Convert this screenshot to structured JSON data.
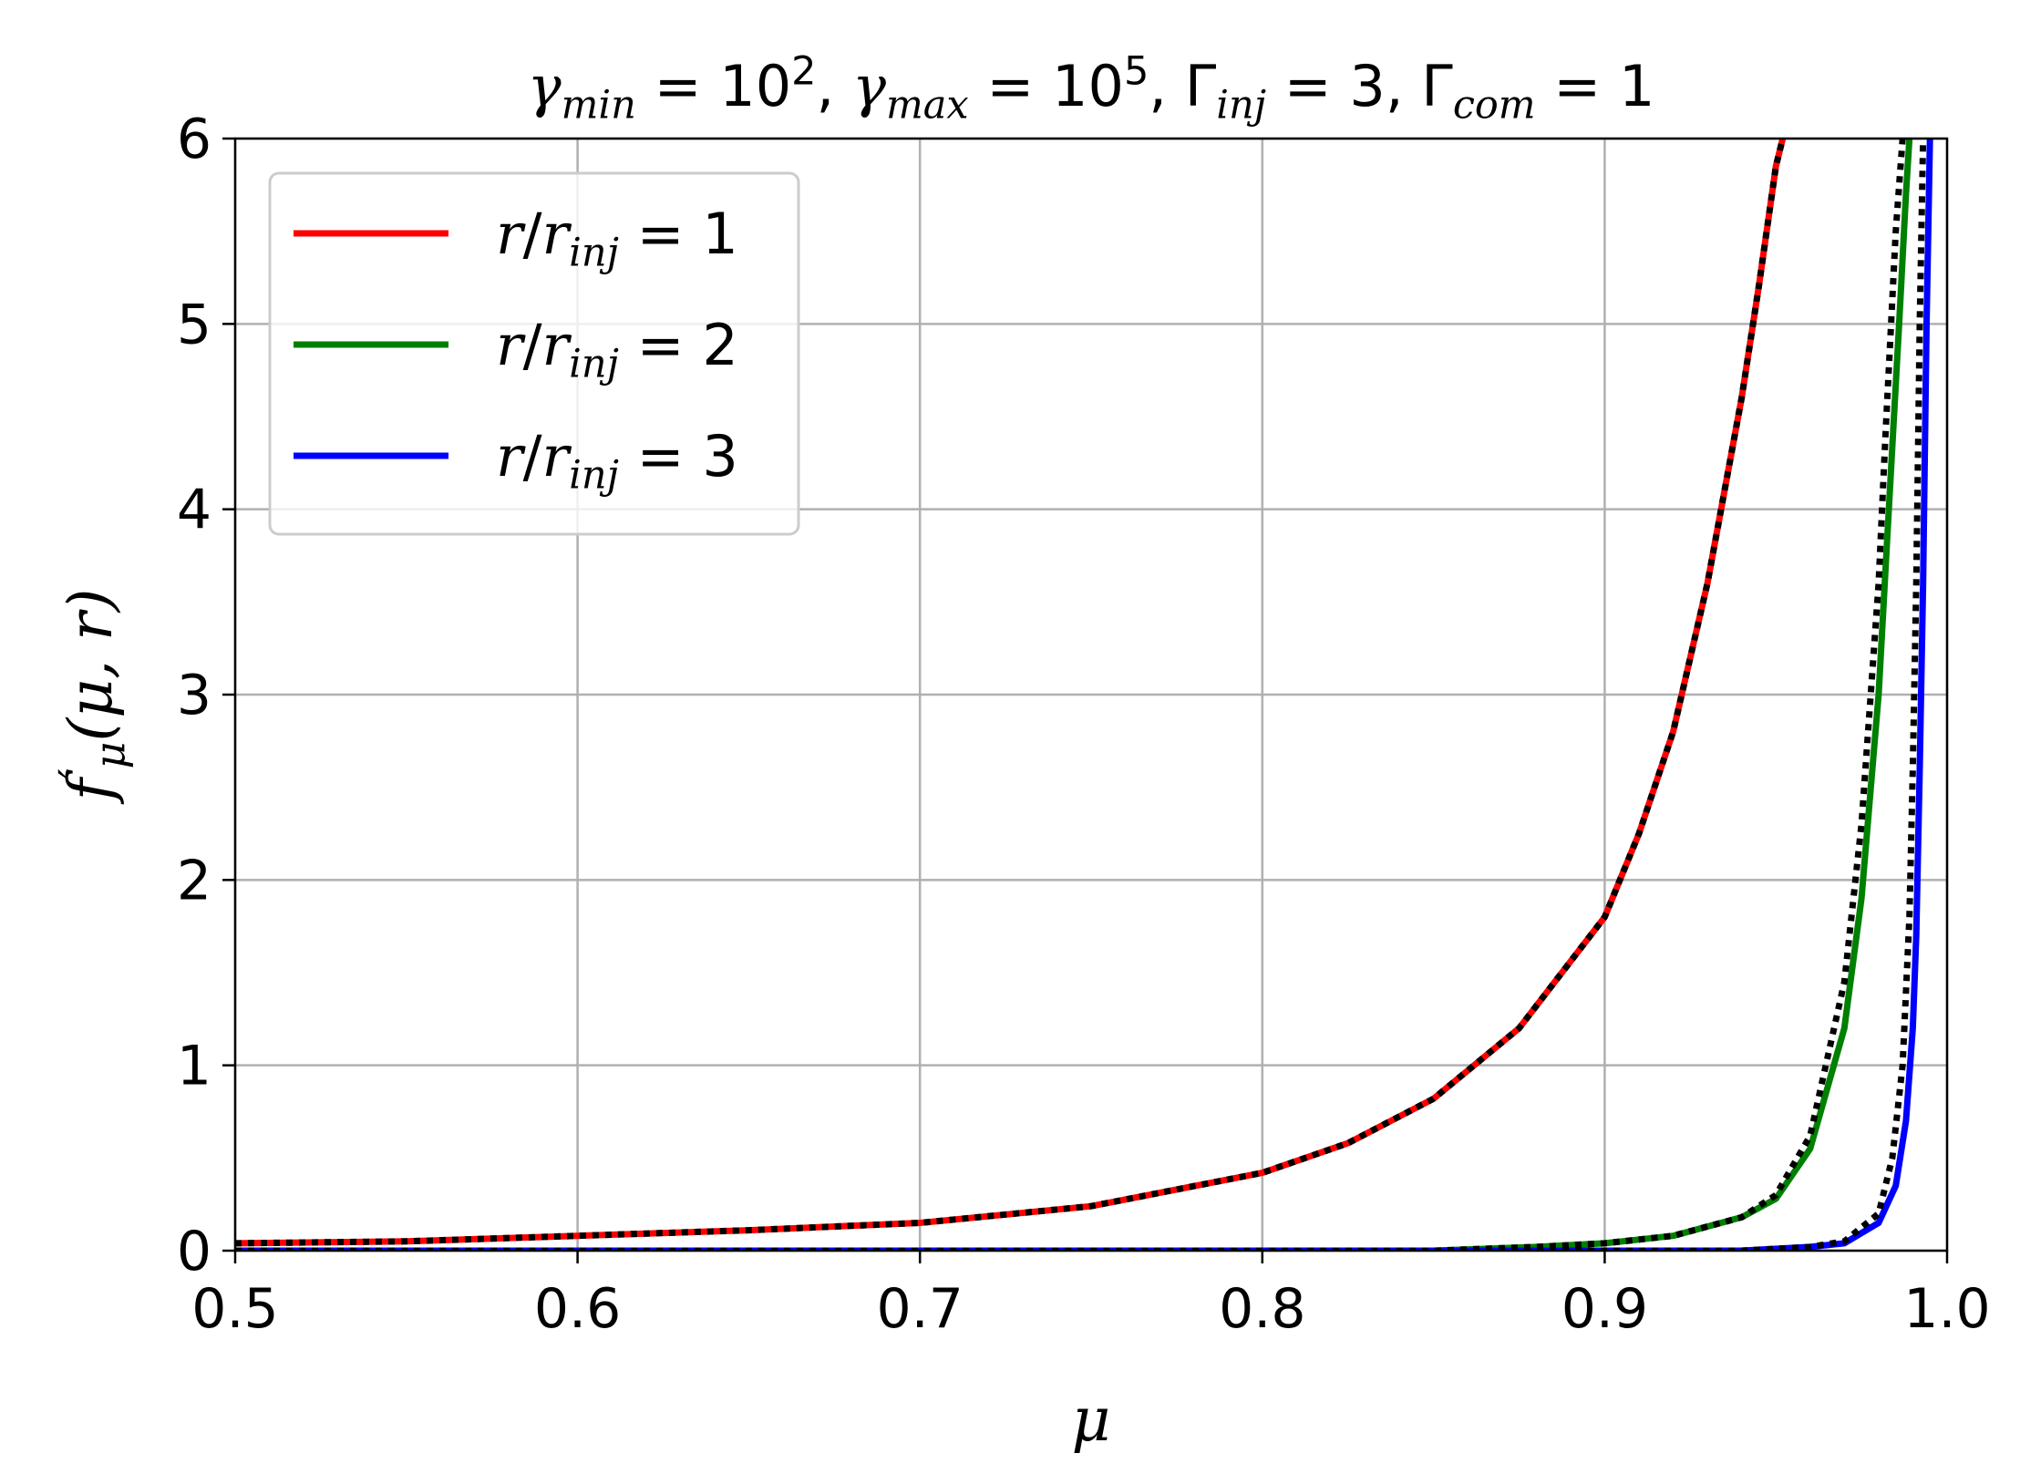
{
  "chart_data": {
    "type": "line",
    "title": {
      "parts": [
        {
          "t": "γ",
          "i": true
        },
        {
          "t": "min",
          "sub": true,
          "i": true
        },
        {
          "t": " = 10"
        },
        {
          "t": "2",
          "sup": true
        },
        {
          "t": ", "
        },
        {
          "t": "γ",
          "i": true
        },
        {
          "t": "max",
          "sub": true,
          "i": true
        },
        {
          "t": " = 10"
        },
        {
          "t": "5",
          "sup": true
        },
        {
          "t": ", Γ"
        },
        {
          "t": "inj",
          "sub": true,
          "i": true
        },
        {
          "t": " = 3, Γ"
        },
        {
          "t": "com",
          "sub": true,
          "i": true
        },
        {
          "t": " = 1"
        }
      ]
    },
    "xlabel": "μ",
    "ylabel": {
      "parts": [
        {
          "t": "f",
          "i": true
        },
        {
          "t": "′",
          "sup": true
        },
        {
          "t": "μ",
          "sub": true,
          "i": true
        },
        {
          "t": "(μ, r)",
          "i": true
        }
      ]
    },
    "xlim": [
      0.5,
      1.0
    ],
    "ylim": [
      0,
      6
    ],
    "xticks": [
      "0.5",
      "0.6",
      "0.7",
      "0.8",
      "0.9",
      "1.0"
    ],
    "yticks": [
      "0",
      "1",
      "2",
      "3",
      "4",
      "5",
      "6"
    ],
    "grid": true,
    "legend_position": "top-left",
    "series": [
      {
        "name": "r/r_inj = 1",
        "legend_parts": [
          {
            "t": "r",
            "i": true
          },
          {
            "t": "/"
          },
          {
            "t": "r",
            "i": true
          },
          {
            "t": "inj",
            "sub": true,
            "i": true
          },
          {
            "t": " = 1"
          }
        ],
        "color": "#ff0000",
        "points": [
          [
            0.5,
            0.04
          ],
          [
            0.55,
            0.05
          ],
          [
            0.6,
            0.08
          ],
          [
            0.65,
            0.11
          ],
          [
            0.7,
            0.15
          ],
          [
            0.75,
            0.24
          ],
          [
            0.8,
            0.42
          ],
          [
            0.825,
            0.58
          ],
          [
            0.85,
            0.82
          ],
          [
            0.875,
            1.2
          ],
          [
            0.9,
            1.8
          ],
          [
            0.91,
            2.25
          ],
          [
            0.92,
            2.8
          ],
          [
            0.93,
            3.6
          ],
          [
            0.94,
            4.6
          ],
          [
            0.945,
            5.2
          ],
          [
            0.95,
            5.85
          ],
          [
            0.952,
            6.0
          ]
        ]
      },
      {
        "name": "r/r_inj = 2",
        "legend_parts": [
          {
            "t": "r",
            "i": true
          },
          {
            "t": "/"
          },
          {
            "t": "r",
            "i": true
          },
          {
            "t": "inj",
            "sub": true,
            "i": true
          },
          {
            "t": " = 2"
          }
        ],
        "color": "#008000",
        "points": [
          [
            0.5,
            0.0
          ],
          [
            0.85,
            0.0
          ],
          [
            0.88,
            0.02
          ],
          [
            0.9,
            0.04
          ],
          [
            0.92,
            0.08
          ],
          [
            0.94,
            0.18
          ],
          [
            0.95,
            0.28
          ],
          [
            0.96,
            0.55
          ],
          [
            0.97,
            1.2
          ],
          [
            0.975,
            1.9
          ],
          [
            0.98,
            3.0
          ],
          [
            0.983,
            4.0
          ],
          [
            0.986,
            5.0
          ],
          [
            0.988,
            5.7
          ],
          [
            0.989,
            6.0
          ]
        ]
      },
      {
        "name": "r/r_inj = 3",
        "legend_parts": [
          {
            "t": "r",
            "i": true
          },
          {
            "t": "/"
          },
          {
            "t": "r",
            "i": true
          },
          {
            "t": "inj",
            "sub": true,
            "i": true
          },
          {
            "t": " = 3"
          }
        ],
        "color": "#0000ff",
        "points": [
          [
            0.5,
            0.0
          ],
          [
            0.94,
            0.0
          ],
          [
            0.96,
            0.02
          ],
          [
            0.97,
            0.04
          ],
          [
            0.98,
            0.15
          ],
          [
            0.985,
            0.35
          ],
          [
            0.988,
            0.7
          ],
          [
            0.99,
            1.2
          ],
          [
            0.991,
            1.7
          ],
          [
            0.992,
            2.6
          ],
          [
            0.993,
            3.6
          ],
          [
            0.994,
            5.0
          ],
          [
            0.995,
            6.0
          ]
        ]
      }
    ],
    "reference_curves": [
      {
        "style": "dotted",
        "color": "#000000",
        "points": [
          [
            0.5,
            0.04
          ],
          [
            0.55,
            0.05
          ],
          [
            0.6,
            0.08
          ],
          [
            0.65,
            0.11
          ],
          [
            0.7,
            0.15
          ],
          [
            0.75,
            0.24
          ],
          [
            0.8,
            0.42
          ],
          [
            0.825,
            0.58
          ],
          [
            0.85,
            0.82
          ],
          [
            0.875,
            1.2
          ],
          [
            0.9,
            1.8
          ],
          [
            0.91,
            2.25
          ],
          [
            0.92,
            2.8
          ],
          [
            0.93,
            3.6
          ],
          [
            0.94,
            4.6
          ],
          [
            0.945,
            5.2
          ],
          [
            0.95,
            5.85
          ],
          [
            0.952,
            6.0
          ]
        ]
      },
      {
        "style": "dotted",
        "color": "#000000",
        "points": [
          [
            0.5,
            0.0
          ],
          [
            0.85,
            0.0
          ],
          [
            0.88,
            0.02
          ],
          [
            0.9,
            0.04
          ],
          [
            0.92,
            0.08
          ],
          [
            0.94,
            0.18
          ],
          [
            0.95,
            0.3
          ],
          [
            0.96,
            0.62
          ],
          [
            0.97,
            1.45
          ],
          [
            0.975,
            2.3
          ],
          [
            0.98,
            3.6
          ],
          [
            0.982,
            4.4
          ],
          [
            0.985,
            5.5
          ],
          [
            0.987,
            6.0
          ]
        ]
      },
      {
        "style": "dotted",
        "color": "#000000",
        "points": [
          [
            0.5,
            0.0
          ],
          [
            0.94,
            0.0
          ],
          [
            0.96,
            0.02
          ],
          [
            0.97,
            0.05
          ],
          [
            0.98,
            0.2
          ],
          [
            0.984,
            0.5
          ],
          [
            0.987,
            1.0
          ],
          [
            0.989,
            1.8
          ],
          [
            0.99,
            2.6
          ],
          [
            0.991,
            3.6
          ],
          [
            0.992,
            5.0
          ],
          [
            0.993,
            6.0
          ]
        ]
      }
    ]
  }
}
